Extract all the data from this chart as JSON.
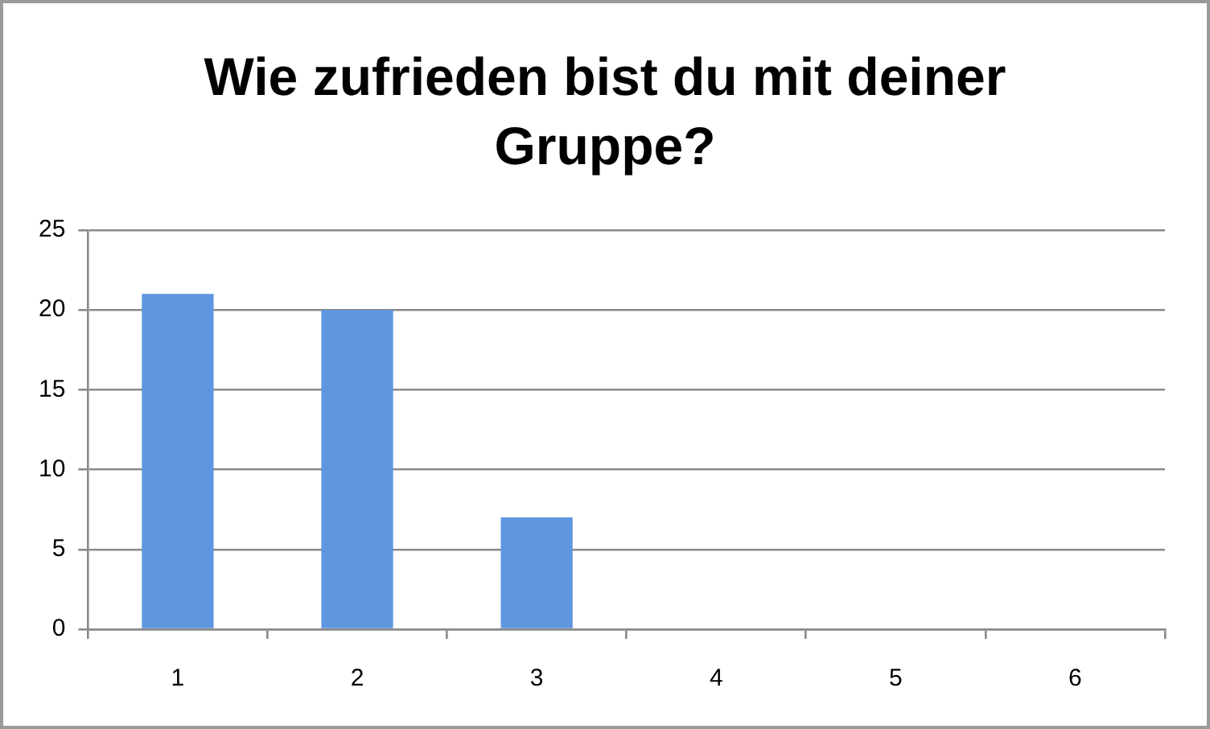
{
  "chart_data": {
    "type": "bar",
    "title": "Wie zufrieden bist du mit deiner Gruppe?",
    "categories": [
      "1",
      "2",
      "3",
      "4",
      "5",
      "6"
    ],
    "values": [
      21,
      20,
      7,
      0,
      0,
      0
    ],
    "color": "#5f96e0",
    "ylim": [
      0,
      25
    ],
    "yticks": [
      0,
      5,
      10,
      15,
      20,
      25
    ],
    "grid": "y"
  }
}
